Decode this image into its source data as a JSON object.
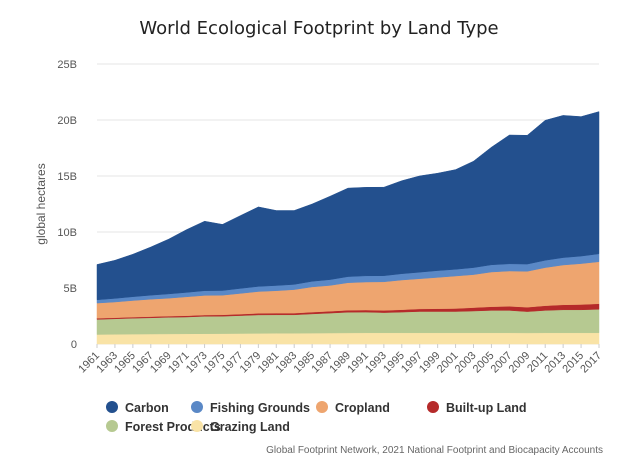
{
  "chart_data": {
    "type": "area",
    "stacked": true,
    "title": "World Ecological Footprint by Land Type",
    "ylabel": "global hectares",
    "xlabel": "",
    "credit": "Global Footprint Network, 2021 National Footprint and Biocapacity Accounts",
    "ylim": [
      0,
      25
    ],
    "y_ticks": [
      {
        "value": 0,
        "label": "0"
      },
      {
        "value": 5,
        "label": "5B"
      },
      {
        "value": 10,
        "label": "10B"
      },
      {
        "value": 15,
        "label": "15B"
      },
      {
        "value": 20,
        "label": "20B"
      },
      {
        "value": 25,
        "label": "25B"
      }
    ],
    "x_ticks": [
      "1961",
      "1963",
      "1965",
      "1967",
      "1969",
      "1971",
      "1973",
      "1975",
      "1977",
      "1979",
      "1981",
      "1983",
      "1985",
      "1987",
      "1989",
      "1991",
      "1993",
      "1995",
      "1997",
      "1999",
      "2001",
      "2003",
      "2005",
      "2007",
      "2009",
      "2011",
      "2013",
      "2015",
      "2017"
    ],
    "x": [
      1961,
      1963,
      1965,
      1967,
      1969,
      1971,
      1973,
      1975,
      1977,
      1979,
      1981,
      1983,
      1985,
      1987,
      1989,
      1991,
      1993,
      1995,
      1997,
      1999,
      2001,
      2003,
      2005,
      2007,
      2009,
      2011,
      2013,
      2015,
      2017
    ],
    "grid": true,
    "legend_position": "bottom",
    "series": [
      {
        "name": "Grazing Land",
        "color": "#f9e3a6",
        "values": [
          0.85,
          0.87,
          0.88,
          0.89,
          0.9,
          0.91,
          0.92,
          0.93,
          0.94,
          0.95,
          0.96,
          0.96,
          0.97,
          0.98,
          0.99,
          1.0,
          1.0,
          1.0,
          1.0,
          1.0,
          1.0,
          1.0,
          1.0,
          1.0,
          0.99,
          1.0,
          1.0,
          1.0,
          1.0
        ]
      },
      {
        "name": "Forest Products",
        "color": "#b6c991",
        "values": [
          1.35,
          1.38,
          1.42,
          1.45,
          1.48,
          1.5,
          1.55,
          1.55,
          1.6,
          1.65,
          1.65,
          1.65,
          1.72,
          1.78,
          1.85,
          1.85,
          1.8,
          1.85,
          1.9,
          1.9,
          1.9,
          1.95,
          2.0,
          2.0,
          1.9,
          2.0,
          2.05,
          2.05,
          2.1
        ]
      },
      {
        "name": "Built-up Land",
        "color": "#b52a2a",
        "values": [
          0.1,
          0.1,
          0.1,
          0.11,
          0.11,
          0.12,
          0.12,
          0.13,
          0.13,
          0.14,
          0.15,
          0.15,
          0.16,
          0.17,
          0.18,
          0.19,
          0.2,
          0.21,
          0.23,
          0.25,
          0.27,
          0.3,
          0.33,
          0.37,
          0.4,
          0.42,
          0.45,
          0.48,
          0.5
        ]
      },
      {
        "name": "Cropland",
        "color": "#eea56f",
        "values": [
          1.35,
          1.4,
          1.48,
          1.55,
          1.6,
          1.68,
          1.75,
          1.75,
          1.85,
          1.95,
          2.0,
          2.1,
          2.25,
          2.3,
          2.45,
          2.5,
          2.55,
          2.65,
          2.7,
          2.8,
          2.9,
          2.95,
          3.1,
          3.15,
          3.2,
          3.4,
          3.55,
          3.65,
          3.75
        ]
      },
      {
        "name": "Fishing Grounds",
        "color": "#5a88c6",
        "values": [
          0.3,
          0.32,
          0.34,
          0.36,
          0.38,
          0.4,
          0.42,
          0.42,
          0.44,
          0.45,
          0.46,
          0.46,
          0.5,
          0.52,
          0.55,
          0.55,
          0.55,
          0.57,
          0.58,
          0.6,
          0.6,
          0.62,
          0.64,
          0.64,
          0.64,
          0.65,
          0.66,
          0.67,
          0.7
        ]
      },
      {
        "name": "Carbon",
        "color": "#23508e",
        "values": [
          3.15,
          3.4,
          3.8,
          4.3,
          4.9,
          5.6,
          6.2,
          5.9,
          6.5,
          7.1,
          6.7,
          6.6,
          6.9,
          7.45,
          7.9,
          7.9,
          7.9,
          8.3,
          8.6,
          8.7,
          8.9,
          9.5,
          10.5,
          11.5,
          11.5,
          12.5,
          12.7,
          12.45,
          12.7
        ]
      }
    ],
    "legend_order": [
      "Carbon",
      "Fishing Grounds",
      "Cropland",
      "Built-up Land",
      "Forest Products",
      "Grazing Land"
    ]
  }
}
